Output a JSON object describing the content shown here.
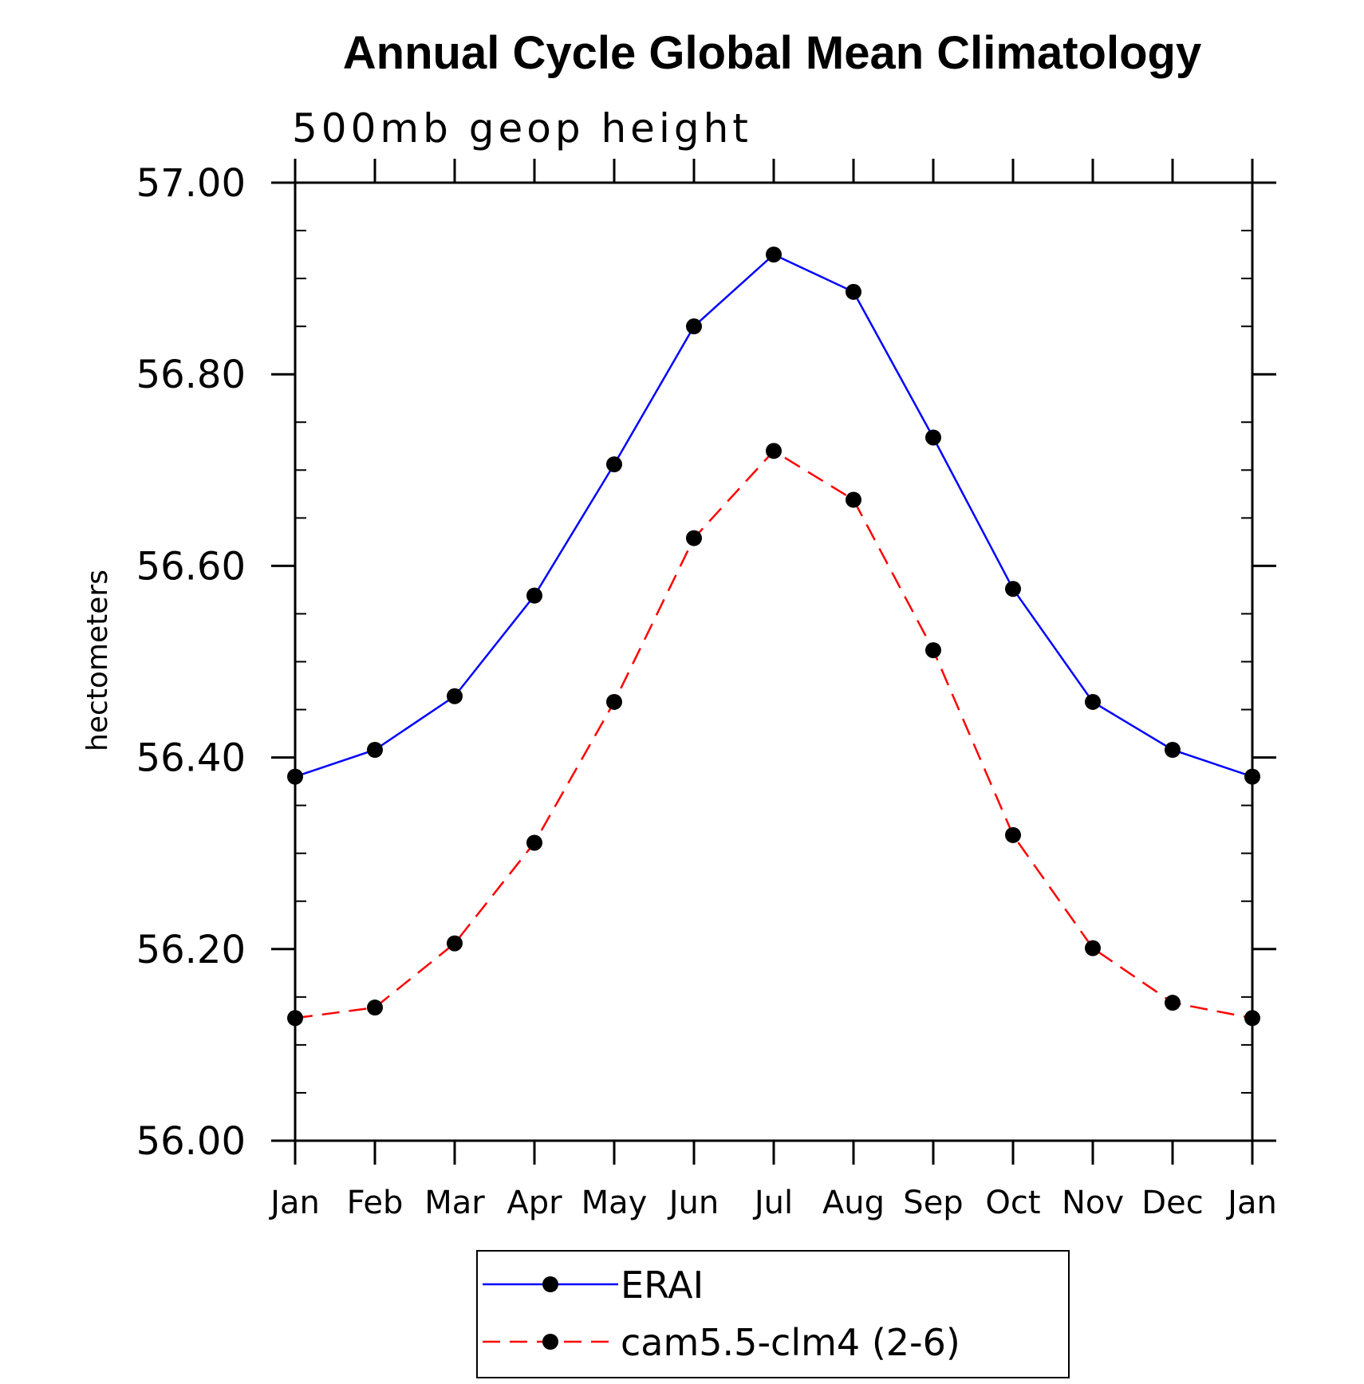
{
  "chart_data": {
    "type": "line",
    "title": "Annual Cycle Global Mean Climatology",
    "subtitle": "500mb geop height",
    "xlabel": "",
    "ylabel": "hectometers",
    "categories": [
      "Jan",
      "Feb",
      "Mar",
      "Apr",
      "May",
      "Jun",
      "Jul",
      "Aug",
      "Sep",
      "Oct",
      "Nov",
      "Dec",
      "Jan"
    ],
    "ylim": [
      56.0,
      57.0
    ],
    "yticks": [
      "56.00",
      "56.20",
      "56.40",
      "56.60",
      "56.80",
      "57.00"
    ],
    "grid": false,
    "legend_position": "bottom-center",
    "series": [
      {
        "name": "ERAI",
        "color": "#0000ff",
        "line_style": "solid",
        "marker": "filled-circle",
        "values": [
          56.38,
          56.408,
          56.464,
          56.569,
          56.706,
          56.85,
          56.925,
          56.886,
          56.734,
          56.576,
          56.458,
          56.408,
          56.38
        ]
      },
      {
        "name": "cam5.5-clm4 (2-6)",
        "color": "#ff0000",
        "line_style": "dashed",
        "marker": "filled-circle",
        "values": [
          56.128,
          56.139,
          56.206,
          56.311,
          56.458,
          56.629,
          56.72,
          56.669,
          56.512,
          56.319,
          56.201,
          56.144,
          56.128
        ]
      }
    ]
  }
}
